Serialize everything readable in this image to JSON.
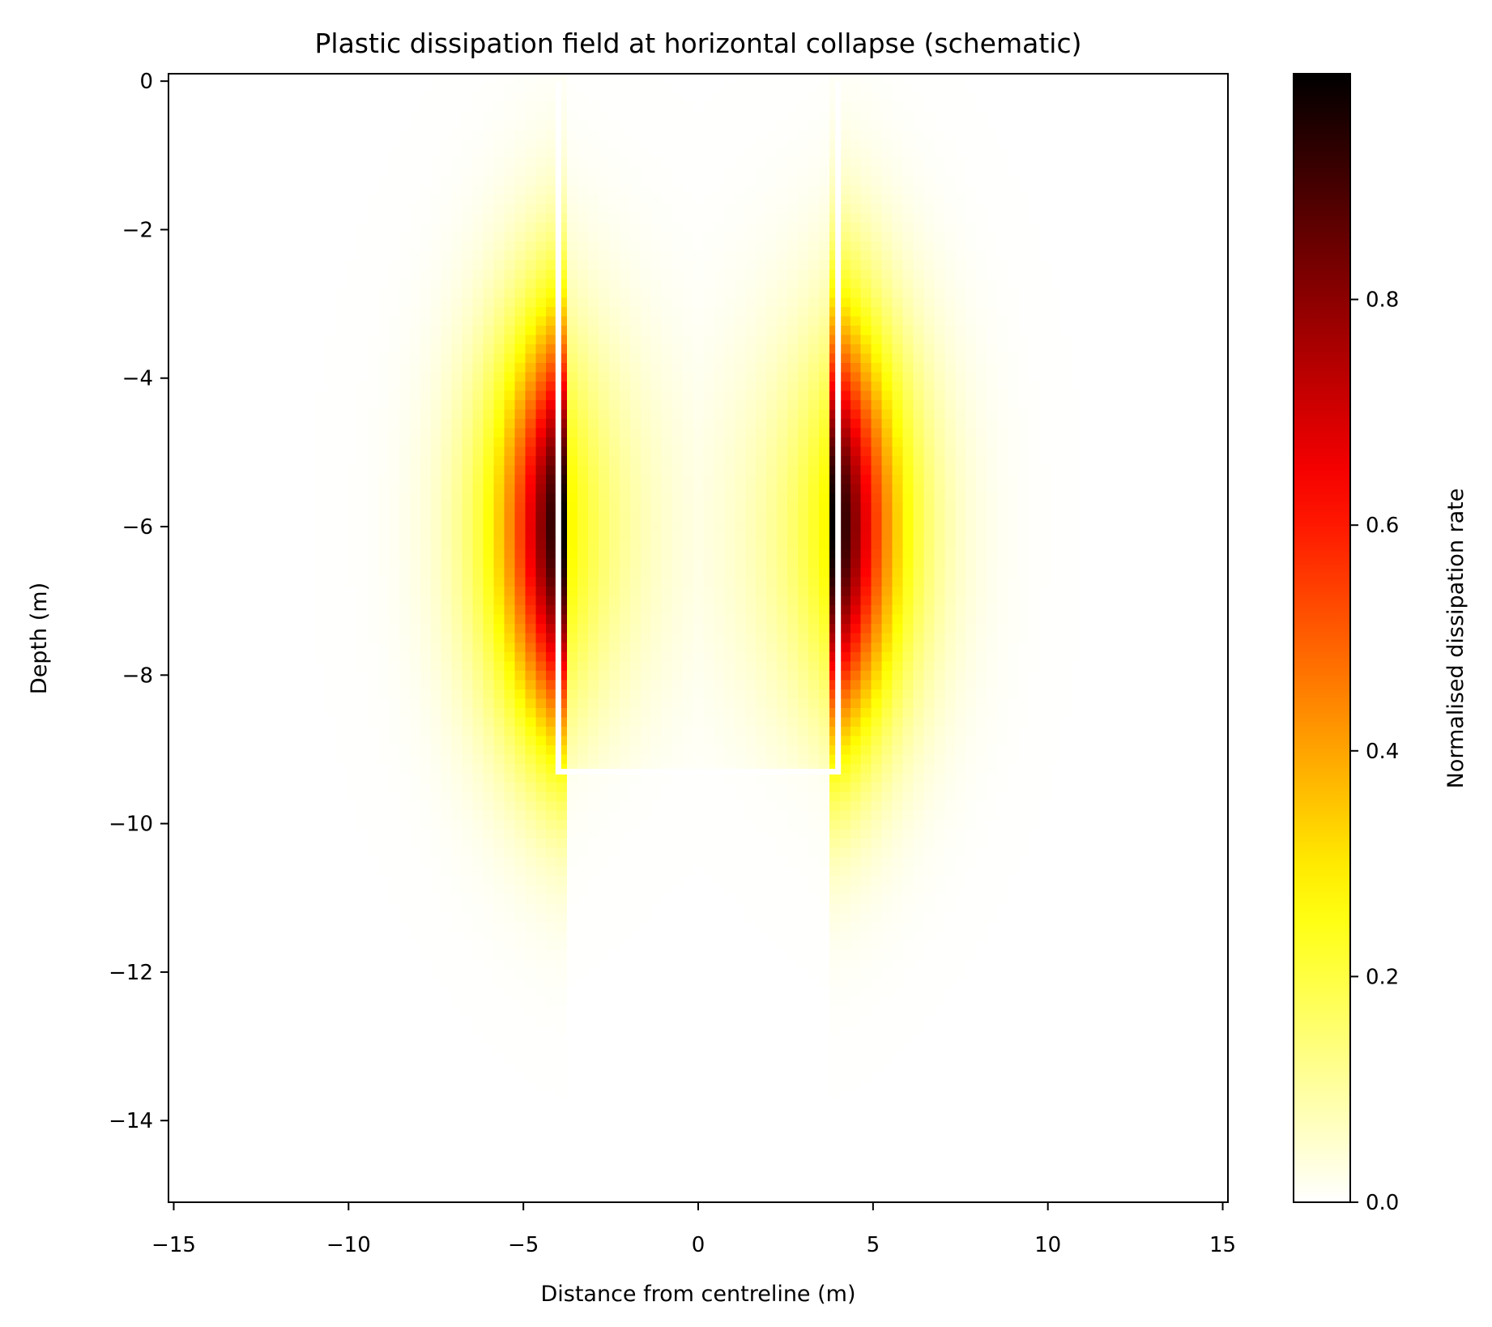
{
  "chart_data": {
    "type": "heatmap",
    "title": "Plastic dissipation field at horizontal collapse (schematic)",
    "xlabel": "Distance from centreline (m)",
    "ylabel": "Depth (m)",
    "xlim": [
      -15.15,
      15.15
    ],
    "ylim": [
      -15.1,
      0.1
    ],
    "xticks": [
      -15,
      -10,
      -5,
      0,
      5,
      10,
      15
    ],
    "xtick_labels": [
      "−15",
      "−10",
      "−5",
      "0",
      "5",
      "10",
      "15"
    ],
    "yticks": [
      0,
      -2,
      -4,
      -6,
      -8,
      -10,
      -12,
      -14
    ],
    "ytick_labels": [
      "0",
      "−2",
      "−4",
      "−6",
      "−8",
      "−10",
      "−12",
      "−14"
    ],
    "grid": false,
    "colormap": "hot_r",
    "vmin": 0,
    "vmax": 1,
    "colorbar": {
      "label": "Normalised dissipation rate",
      "ticks": [
        0.0,
        0.2,
        0.4,
        0.6,
        0.8
      ],
      "tick_labels": [
        "0.0",
        "0.2",
        "0.4",
        "0.6",
        "0.8"
      ]
    },
    "field": {
      "grid_x": {
        "min": -15.15,
        "max": 15.15,
        "n": 101
      },
      "grid_y": {
        "min": -15.1,
        "max": 0.1,
        "n": 121
      },
      "peak_depth": -6,
      "peak_value": 1.0,
      "vertical_spread": 2.8,
      "lobe_centres_x": [
        -4.05,
        4.05
      ],
      "outer_decay": 1.7,
      "inner_peak_value": 0.3,
      "inner_decay": 1.6
    },
    "wall_outline": {
      "x": [
        -4.0,
        -4.0,
        4.0,
        4.0
      ],
      "y": [
        0,
        -9.3,
        -9.3,
        0
      ],
      "color": "#ffffff"
    }
  }
}
